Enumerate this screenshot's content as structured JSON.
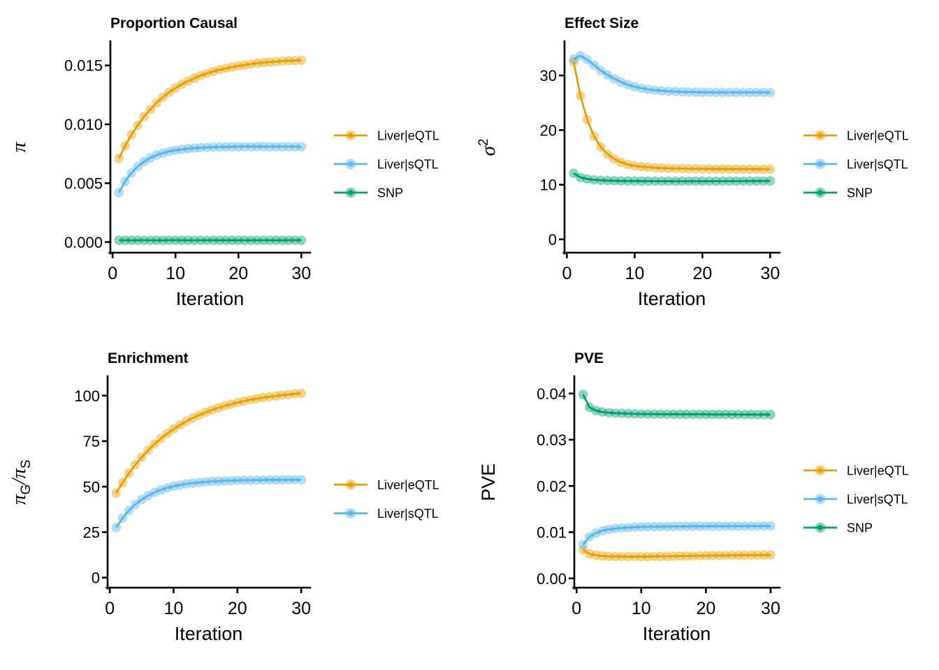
{
  "figure": {
    "background": "#ffffff",
    "axis_color": "#000000",
    "text_color": "#000000"
  },
  "palette": {
    "liver_eqtl": "#E69F00",
    "liver_sqtl": "#56B4E9",
    "snp": "#009E73"
  },
  "chart_data": [
    {
      "type": "line",
      "title": "Proportion Causal",
      "xlabel": "Iteration",
      "ylabel_parts": [
        {
          "text": "π",
          "italic": true
        }
      ],
      "grid": false,
      "legend_position": "right",
      "xlim": [
        -0.35,
        31.3
      ],
      "ylim": [
        -0.0009,
        0.017
      ],
      "xticks": [
        0,
        10,
        20,
        30
      ],
      "xtick_labels": [
        "0",
        "10",
        "20",
        "30"
      ],
      "yticks": [
        0,
        0.005,
        0.01,
        0.015
      ],
      "ytick_labels": [
        "0.000",
        "0.005",
        "0.010",
        "0.015"
      ],
      "x": [
        1,
        2,
        3,
        4,
        5,
        6,
        7,
        8,
        9,
        10,
        11,
        12,
        13,
        14,
        15,
        16,
        17,
        18,
        19,
        20,
        21,
        22,
        23,
        24,
        25,
        26,
        27,
        28,
        29,
        30
      ],
      "series": [
        {
          "name": "Liver|eQTL",
          "color": "#E69F00",
          "values": [
            0.0071,
            0.00817,
            0.00911,
            0.00993,
            0.01065,
            0.01127,
            0.01182,
            0.0123,
            0.01272,
            0.01308,
            0.0134,
            0.01368,
            0.01392,
            0.01414,
            0.01432,
            0.01449,
            0.01463,
            0.01475,
            0.01486,
            0.01496,
            0.01504,
            0.01512,
            0.01518,
            0.01524,
            0.01528,
            0.01533,
            0.01536,
            0.0154,
            0.01542,
            0.01545
          ]
        },
        {
          "name": "Liver|sQTL",
          "color": "#56B4E9",
          "values": [
            0.0042,
            0.00515,
            0.00587,
            0.00641,
            0.00683,
            0.00714,
            0.00738,
            0.00756,
            0.0077,
            0.0078,
            0.00787,
            0.00793,
            0.00798,
            0.00801,
            0.00804,
            0.00806,
            0.00807,
            0.00808,
            0.00809,
            0.0081,
            0.0081,
            0.0081,
            0.0081,
            0.0081,
            0.0081,
            0.0081,
            0.0081,
            0.0081,
            0.0081,
            0.0081
          ]
        },
        {
          "name": "SNP",
          "color": "#009E73",
          "values": [
            0.00015,
            0.00015,
            0.00015,
            0.00015,
            0.00015,
            0.00015,
            0.00015,
            0.00015,
            0.00015,
            0.00015,
            0.00015,
            0.00015,
            0.00015,
            0.00015,
            0.00015,
            0.00015,
            0.00015,
            0.00015,
            0.00015,
            0.00015,
            0.00015,
            0.00015,
            0.00015,
            0.00015,
            0.00015,
            0.00015,
            0.00015,
            0.00015,
            0.00015,
            0.00015
          ]
        }
      ]
    },
    {
      "type": "line",
      "title": "Effect Size",
      "xlabel": "Iteration",
      "ylabel_parts": [
        {
          "text": "σ",
          "italic": true
        },
        {
          "text": "2",
          "sup": true
        }
      ],
      "grid": false,
      "legend_position": "right",
      "xlim": [
        -0.35,
        31.3
      ],
      "ylim": [
        -2.43,
        36.15
      ],
      "xticks": [
        0,
        10,
        20,
        30
      ],
      "xtick_labels": [
        "0",
        "10",
        "20",
        "30"
      ],
      "yticks": [
        0,
        10,
        20,
        30
      ],
      "ytick_labels": [
        "0",
        "10",
        "20",
        "30"
      ],
      "x": [
        1,
        2,
        3,
        4,
        5,
        6,
        7,
        8,
        9,
        10,
        11,
        12,
        13,
        14,
        15,
        16,
        17,
        18,
        19,
        20,
        21,
        22,
        23,
        24,
        25,
        26,
        27,
        28,
        29,
        30
      ],
      "series": [
        {
          "name": "Liver|eQTL",
          "color": "#E69F00",
          "values": [
            32.5,
            26.3,
            21.9,
            18.9,
            16.9,
            15.6,
            14.7,
            14.1,
            13.7,
            13.45,
            13.3,
            13.2,
            13.1,
            13.05,
            13.0,
            12.98,
            12.95,
            12.93,
            12.92,
            12.9,
            12.89,
            12.88,
            12.87,
            12.86,
            12.86,
            12.85,
            12.85,
            12.85,
            12.84,
            12.84
          ]
        },
        {
          "name": "Liver|sQTL",
          "color": "#56B4E9",
          "values": [
            33.0,
            33.6,
            32.9,
            31.9,
            30.9,
            30.1,
            29.4,
            28.8,
            28.3,
            27.95,
            27.65,
            27.45,
            27.3,
            27.2,
            27.1,
            27.05,
            27.0,
            26.97,
            26.95,
            26.93,
            26.92,
            26.91,
            26.9,
            26.9,
            26.9,
            26.9,
            26.9,
            26.9,
            26.9,
            26.9
          ]
        },
        {
          "name": "SNP",
          "color": "#009E73",
          "values": [
            12.1,
            11.35,
            11.05,
            10.9,
            10.82,
            10.77,
            10.73,
            10.7,
            10.68,
            10.67,
            10.66,
            10.65,
            10.65,
            10.64,
            10.64,
            10.64,
            10.64,
            10.64,
            10.64,
            10.64,
            10.64,
            10.64,
            10.65,
            10.65,
            10.65,
            10.66,
            10.66,
            10.67,
            10.68,
            10.7
          ]
        }
      ]
    },
    {
      "type": "line",
      "title": "Enrichment",
      "xlabel": "Iteration",
      "ylabel_parts": [
        {
          "text": "π",
          "italic": true
        },
        {
          "text": "G",
          "sub": true
        },
        {
          "text": "/",
          "italic": true
        },
        {
          "text": "π",
          "italic": true
        },
        {
          "text": "S",
          "sub": true
        }
      ],
      "grid": false,
      "legend_position": "right",
      "xlim": [
        -0.35,
        31.3
      ],
      "ylim": [
        -5.5,
        110.3
      ],
      "xticks": [
        0,
        10,
        20,
        30
      ],
      "xtick_labels": [
        "0",
        "10",
        "20",
        "30"
      ],
      "yticks": [
        0,
        25,
        50,
        75,
        100
      ],
      "ytick_labels": [
        "0",
        "25",
        "50",
        "75",
        "100"
      ],
      "x": [
        1,
        2,
        3,
        4,
        5,
        6,
        7,
        8,
        9,
        10,
        11,
        12,
        13,
        14,
        15,
        16,
        17,
        18,
        19,
        20,
        21,
        22,
        23,
        24,
        25,
        26,
        27,
        28,
        29,
        30
      ],
      "series": [
        {
          "name": "Liver|eQTL",
          "color": "#E69F00",
          "values": [
            46.5,
            52.2,
            57.4,
            62.0,
            66.2,
            70.0,
            73.4,
            76.4,
            79.2,
            81.6,
            83.9,
            85.9,
            87.7,
            89.3,
            90.8,
            92.1,
            93.3,
            94.3,
            95.3,
            96.2,
            97.0,
            97.7,
            98.3,
            98.9,
            99.4,
            99.8,
            100.3,
            100.6,
            101.0,
            101.3
          ]
        },
        {
          "name": "Liver|sQTL",
          "color": "#56B4E9",
          "values": [
            27.5,
            32.7,
            36.9,
            40.2,
            42.9,
            45.1,
            46.8,
            48.2,
            49.3,
            50.2,
            50.9,
            51.5,
            51.9,
            52.3,
            52.6,
            52.8,
            53.0,
            53.2,
            53.3,
            53.4,
            53.5,
            53.55,
            53.6,
            53.65,
            53.7,
            53.7,
            53.7,
            53.75,
            53.75,
            53.75
          ]
        }
      ]
    },
    {
      "type": "line",
      "title": "PVE",
      "xlabel": "Iteration",
      "ylabel_parts": [
        {
          "text": "PVE"
        }
      ],
      "grid": false,
      "legend_position": "right",
      "xlim": [
        -0.35,
        31.3
      ],
      "ylim": [
        -0.002,
        0.0436
      ],
      "xticks": [
        0,
        10,
        20,
        30
      ],
      "xtick_labels": [
        "0",
        "10",
        "20",
        "30"
      ],
      "yticks": [
        0,
        0.01,
        0.02,
        0.03,
        0.04
      ],
      "ytick_labels": [
        "0.00",
        "0.01",
        "0.02",
        "0.03",
        "0.04"
      ],
      "x": [
        1,
        2,
        3,
        4,
        5,
        6,
        7,
        8,
        9,
        10,
        11,
        12,
        13,
        14,
        15,
        16,
        17,
        18,
        19,
        20,
        21,
        22,
        23,
        24,
        25,
        26,
        27,
        28,
        29,
        30
      ],
      "series": [
        {
          "name": "Liver|eQTL",
          "color": "#E69F00",
          "values": [
            0.0062,
            0.0053,
            0.005,
            0.00485,
            0.00478,
            0.00474,
            0.00472,
            0.00471,
            0.00471,
            0.00472,
            0.00473,
            0.00475,
            0.00477,
            0.00479,
            0.00481,
            0.00483,
            0.00485,
            0.00487,
            0.00489,
            0.00491,
            0.00493,
            0.00495,
            0.00497,
            0.00498,
            0.005,
            0.00501,
            0.00503,
            0.00504,
            0.00505,
            0.00506
          ]
        },
        {
          "name": "Liver|sQTL",
          "color": "#56B4E9",
          "values": [
            0.0073,
            0.009,
            0.0098,
            0.0103,
            0.0106,
            0.0108,
            0.0109,
            0.011,
            0.0111,
            0.01113,
            0.01116,
            0.01119,
            0.01121,
            0.01123,
            0.01124,
            0.01125,
            0.01126,
            0.01127,
            0.01128,
            0.01128,
            0.01129,
            0.01129,
            0.0113,
            0.0113,
            0.0113,
            0.01131,
            0.01131,
            0.01131,
            0.01132,
            0.01132
          ]
        },
        {
          "name": "SNP",
          "color": "#009E73",
          "values": [
            0.0398,
            0.037,
            0.0363,
            0.036,
            0.03585,
            0.03575,
            0.0357,
            0.03565,
            0.0356,
            0.03558,
            0.03556,
            0.03555,
            0.03553,
            0.03552,
            0.03551,
            0.0355,
            0.0355,
            0.03549,
            0.03548,
            0.03548,
            0.03547,
            0.03547,
            0.03546,
            0.03546,
            0.03545,
            0.03545,
            0.03545,
            0.03544,
            0.03544,
            0.03544
          ]
        }
      ]
    }
  ]
}
